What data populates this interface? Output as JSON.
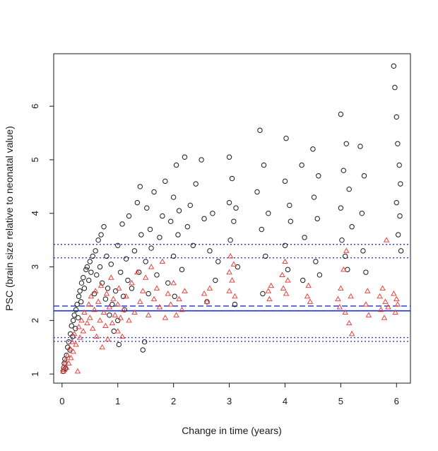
{
  "chart_data": {
    "type": "scatter",
    "title": "",
    "xlabel": "Change in time (years)",
    "ylabel": "PSC (brain size relative to neonatal value)",
    "xlim": [
      -0.15,
      6.25
    ],
    "ylim": [
      0.83,
      6.98
    ],
    "xticks": [
      "0",
      "1",
      "2",
      "3",
      "4",
      "5",
      "6"
    ],
    "yticks": [
      "1",
      "2",
      "3",
      "4",
      "5",
      "6"
    ],
    "series": [
      {
        "name": "black-circles",
        "marker": "circle",
        "color": "#1a1a1a",
        "values": [
          [
            0.02,
            1.05
          ],
          [
            0.03,
            1.12
          ],
          [
            0.04,
            1.2
          ],
          [
            0.05,
            1.28
          ],
          [
            0.06,
            1.1
          ],
          [
            0.08,
            1.35
          ],
          [
            0.1,
            1.5
          ],
          [
            0.12,
            1.6
          ],
          [
            0.14,
            1.45
          ],
          [
            0.15,
            1.75
          ],
          [
            0.17,
            1.9
          ],
          [
            0.19,
            1.7
          ],
          [
            0.2,
            2.0
          ],
          [
            0.22,
            2.1
          ],
          [
            0.24,
            1.85
          ],
          [
            0.25,
            2.2
          ],
          [
            0.27,
            2.3
          ],
          [
            0.29,
            2.05
          ],
          [
            0.3,
            2.45
          ],
          [
            0.32,
            2.55
          ],
          [
            0.34,
            2.35
          ],
          [
            0.35,
            2.7
          ],
          [
            0.38,
            2.8
          ],
          [
            0.4,
            2.6
          ],
          [
            0.43,
            2.95
          ],
          [
            0.45,
            3.0
          ],
          [
            0.48,
            2.75
          ],
          [
            0.5,
            3.1
          ],
          [
            0.52,
            2.9
          ],
          [
            0.55,
            3.2
          ],
          [
            0.58,
            2.5
          ],
          [
            0.6,
            3.3
          ],
          [
            0.62,
            2.85
          ],
          [
            0.65,
            3.5
          ],
          [
            0.68,
            3.0
          ],
          [
            0.7,
            3.6
          ],
          [
            0.72,
            2.7
          ],
          [
            0.75,
            3.75
          ],
          [
            0.78,
            2.4
          ],
          [
            0.8,
            3.2
          ],
          [
            0.82,
            2.6
          ],
          [
            0.85,
            2.1
          ],
          [
            0.88,
            3.05
          ],
          [
            0.9,
            2.3
          ],
          [
            0.93,
            1.8
          ],
          [
            0.96,
            2.55
          ],
          [
            1.0,
            3.4
          ],
          [
            1.0,
            2.0
          ],
          [
            1.02,
            1.55
          ],
          [
            1.05,
            2.9
          ],
          [
            1.08,
            3.8
          ],
          [
            1.1,
            2.45
          ],
          [
            1.12,
            2.2
          ],
          [
            1.15,
            3.15
          ],
          [
            1.18,
            2.75
          ],
          [
            1.2,
            3.95
          ],
          [
            1.25,
            2.6
          ],
          [
            1.3,
            3.3
          ],
          [
            1.35,
            4.2
          ],
          [
            1.38,
            2.9
          ],
          [
            1.4,
            4.5
          ],
          [
            1.42,
            3.6
          ],
          [
            1.45,
            1.45
          ],
          [
            1.48,
            1.6
          ],
          [
            1.5,
            3.1
          ],
          [
            1.52,
            4.1
          ],
          [
            1.55,
            2.5
          ],
          [
            1.58,
            3.7
          ],
          [
            1.6,
            3.35
          ],
          [
            1.65,
            4.4
          ],
          [
            1.7,
            2.85
          ],
          [
            1.75,
            3.55
          ],
          [
            1.8,
            3.95
          ],
          [
            1.85,
            4.6
          ],
          [
            1.9,
            2.7
          ],
          [
            1.95,
            3.85
          ],
          [
            2.0,
            4.3
          ],
          [
            2.0,
            3.2
          ],
          [
            2.02,
            2.45
          ],
          [
            2.05,
            4.9
          ],
          [
            2.08,
            3.6
          ],
          [
            2.1,
            4.05
          ],
          [
            2.15,
            2.95
          ],
          [
            2.2,
            5.05
          ],
          [
            2.25,
            3.75
          ],
          [
            2.3,
            4.15
          ],
          [
            2.35,
            3.4
          ],
          [
            2.4,
            4.55
          ],
          [
            2.5,
            5.0
          ],
          [
            2.55,
            3.9
          ],
          [
            2.6,
            2.35
          ],
          [
            2.65,
            3.3
          ],
          [
            2.7,
            4.0
          ],
          [
            2.75,
            2.75
          ],
          [
            2.8,
            3.1
          ],
          [
            3.0,
            4.2
          ],
          [
            3.0,
            5.05
          ],
          [
            3.02,
            3.5
          ],
          [
            3.05,
            4.65
          ],
          [
            3.08,
            3.85
          ],
          [
            3.1,
            2.3
          ],
          [
            3.12,
            4.1
          ],
          [
            3.15,
            3.0
          ],
          [
            3.5,
            4.4
          ],
          [
            3.55,
            5.55
          ],
          [
            3.58,
            3.7
          ],
          [
            3.6,
            2.5
          ],
          [
            3.62,
            4.9
          ],
          [
            3.65,
            3.2
          ],
          [
            3.7,
            4.0
          ],
          [
            4.0,
            4.6
          ],
          [
            4.0,
            3.4
          ],
          [
            4.02,
            5.4
          ],
          [
            4.05,
            2.95
          ],
          [
            4.08,
            4.15
          ],
          [
            4.1,
            3.85
          ],
          [
            4.3,
            4.9
          ],
          [
            4.32,
            2.75
          ],
          [
            4.35,
            3.55
          ],
          [
            4.5,
            5.2
          ],
          [
            4.52,
            4.3
          ],
          [
            4.55,
            3.1
          ],
          [
            4.58,
            3.9
          ],
          [
            4.6,
            4.7
          ],
          [
            4.62,
            2.85
          ],
          [
            5.0,
            5.85
          ],
          [
            5.0,
            4.1
          ],
          [
            5.02,
            3.5
          ],
          [
            5.05,
            4.8
          ],
          [
            5.08,
            3.2
          ],
          [
            5.1,
            5.3
          ],
          [
            5.12,
            2.95
          ],
          [
            5.15,
            4.45
          ],
          [
            5.2,
            3.75
          ],
          [
            5.35,
            5.25
          ],
          [
            5.38,
            4.0
          ],
          [
            5.4,
            3.3
          ],
          [
            5.42,
            4.7
          ],
          [
            5.45,
            2.9
          ],
          [
            5.95,
            6.75
          ],
          [
            5.97,
            6.35
          ],
          [
            6.0,
            5.8
          ],
          [
            6.0,
            4.2
          ],
          [
            6.02,
            5.3
          ],
          [
            6.03,
            3.6
          ],
          [
            6.05,
            4.9
          ],
          [
            6.06,
            3.95
          ],
          [
            6.07,
            4.55
          ],
          [
            6.08,
            3.3
          ]
        ]
      },
      {
        "name": "red-triangles",
        "marker": "triangle",
        "color": "#e8433f",
        "values": [
          [
            0.02,
            1.05
          ],
          [
            0.03,
            1.15
          ],
          [
            0.04,
            1.08
          ],
          [
            0.06,
            1.25
          ],
          [
            0.08,
            1.12
          ],
          [
            0.1,
            1.35
          ],
          [
            0.12,
            1.2
          ],
          [
            0.14,
            1.48
          ],
          [
            0.16,
            1.3
          ],
          [
            0.18,
            1.6
          ],
          [
            0.2,
            1.42
          ],
          [
            0.22,
            1.75
          ],
          [
            0.25,
            1.55
          ],
          [
            0.28,
            1.05
          ],
          [
            0.3,
            1.88
          ],
          [
            0.32,
            1.68
          ],
          [
            0.35,
            2.0
          ],
          [
            0.38,
            1.8
          ],
          [
            0.4,
            2.15
          ],
          [
            0.45,
            1.95
          ],
          [
            0.48,
            2.3
          ],
          [
            0.5,
            2.05
          ],
          [
            0.52,
            2.45
          ],
          [
            0.55,
            1.85
          ],
          [
            0.58,
            2.2
          ],
          [
            0.6,
            2.55
          ],
          [
            0.62,
            1.7
          ],
          [
            0.65,
            2.35
          ],
          [
            0.68,
            2.0
          ],
          [
            0.7,
            2.65
          ],
          [
            0.72,
            1.5
          ],
          [
            0.75,
            2.15
          ],
          [
            0.78,
            1.9
          ],
          [
            0.8,
            2.5
          ],
          [
            0.82,
            1.65
          ],
          [
            0.85,
            2.25
          ],
          [
            0.88,
            2.8
          ],
          [
            0.9,
            1.95
          ],
          [
            0.92,
            2.4
          ],
          [
            0.95,
            2.1
          ],
          [
            1.0,
            2.3
          ],
          [
            1.0,
            1.8
          ],
          [
            1.02,
            2.6
          ],
          [
            1.05,
            2.05
          ],
          [
            1.08,
            1.7
          ],
          [
            1.1,
            2.2
          ],
          [
            1.15,
            2.45
          ],
          [
            1.2,
            2.0
          ],
          [
            1.25,
            2.7
          ],
          [
            1.3,
            2.15
          ],
          [
            1.35,
            2.9
          ],
          [
            1.4,
            2.35
          ],
          [
            1.45,
            2.55
          ],
          [
            1.5,
            2.8
          ],
          [
            1.55,
            2.1
          ],
          [
            1.6,
            3.0
          ],
          [
            1.65,
            2.4
          ],
          [
            1.7,
            2.6
          ],
          [
            1.75,
            2.25
          ],
          [
            1.8,
            3.1
          ],
          [
            1.85,
            2.05
          ],
          [
            1.9,
            2.5
          ],
          [
            1.95,
            2.3
          ],
          [
            2.0,
            2.7
          ],
          [
            2.05,
            2.1
          ],
          [
            2.1,
            2.4
          ],
          [
            2.15,
            2.2
          ],
          [
            2.2,
            2.55
          ],
          [
            2.55,
            2.5
          ],
          [
            2.6,
            2.35
          ],
          [
            2.65,
            2.6
          ],
          [
            3.0,
            2.9
          ],
          [
            3.0,
            2.55
          ],
          [
            3.02,
            3.2
          ],
          [
            3.05,
            2.75
          ],
          [
            3.08,
            3.05
          ],
          [
            3.1,
            2.45
          ],
          [
            3.7,
            2.55
          ],
          [
            3.72,
            2.4
          ],
          [
            3.75,
            2.65
          ],
          [
            3.95,
            2.85
          ],
          [
            3.97,
            2.6
          ],
          [
            4.0,
            3.1
          ],
          [
            4.02,
            2.5
          ],
          [
            4.05,
            2.75
          ],
          [
            4.4,
            2.45
          ],
          [
            4.42,
            2.65
          ],
          [
            4.45,
            2.35
          ],
          [
            4.95,
            2.4
          ],
          [
            4.98,
            2.25
          ],
          [
            5.0,
            2.6
          ],
          [
            5.05,
            2.95
          ],
          [
            5.08,
            2.15
          ],
          [
            5.1,
            3.3
          ],
          [
            5.15,
            1.95
          ],
          [
            5.18,
            2.45
          ],
          [
            5.2,
            1.75
          ],
          [
            5.45,
            2.3
          ],
          [
            5.48,
            2.55
          ],
          [
            5.5,
            2.1
          ],
          [
            5.7,
            2.45
          ],
          [
            5.72,
            2.2
          ],
          [
            5.75,
            2.6
          ],
          [
            5.78,
            2.05
          ],
          [
            5.8,
            2.35
          ],
          [
            5.82,
            3.5
          ],
          [
            5.85,
            2.25
          ],
          [
            5.95,
            2.5
          ],
          [
            5.98,
            2.15
          ],
          [
            6.0,
            2.4
          ],
          [
            6.02,
            2.3
          ]
        ]
      }
    ],
    "reference_lines": [
      {
        "name": "solid-blue",
        "y": 2.18,
        "color": "#1a2fcf",
        "style": "solid"
      },
      {
        "name": "dashed-blue",
        "y": 2.27,
        "color": "#1a2fcf",
        "style": "dashed"
      },
      {
        "name": "dotted-blue-1",
        "y": 3.42,
        "color": "#3a3adf",
        "style": "dotted"
      },
      {
        "name": "dotted-blue-2",
        "y": 3.17,
        "color": "#3a3adf",
        "style": "dotted"
      },
      {
        "name": "dotted-blue-3",
        "y": 1.68,
        "color": "#3a3adf",
        "style": "dotted"
      },
      {
        "name": "dotted-blue-4",
        "y": 1.61,
        "color": "#3a3adf",
        "style": "dotted"
      }
    ]
  }
}
